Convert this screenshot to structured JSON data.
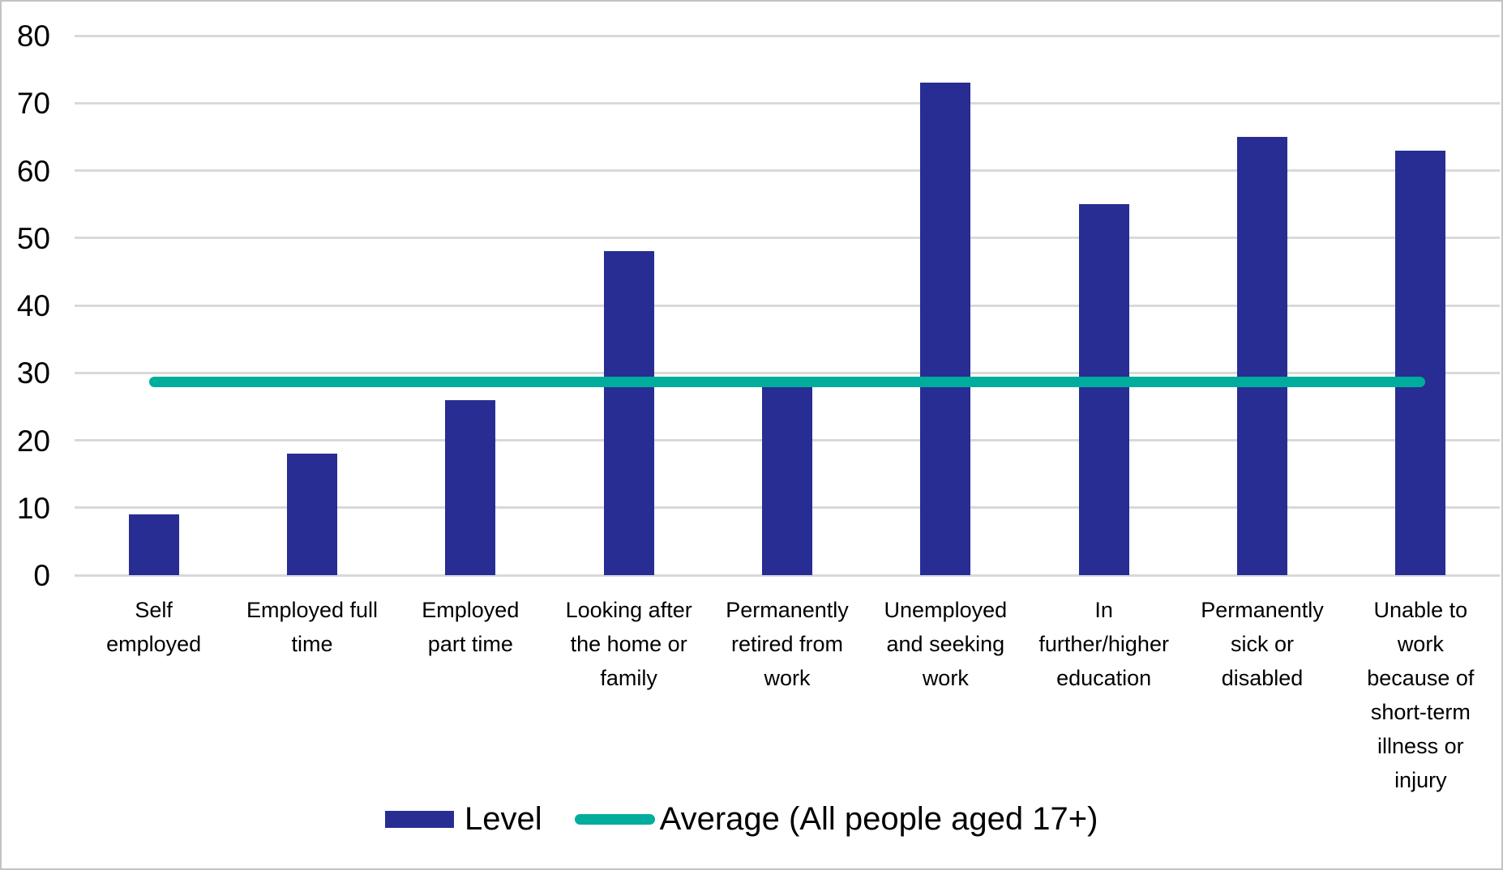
{
  "chart_data": {
    "type": "bar",
    "title": "",
    "xlabel": "",
    "ylabel": "",
    "categories": [
      "Self\nemployed",
      "Employed full\ntime",
      "Employed\npart time",
      "Looking after\nthe home or\nfamily",
      "Permanently\nretired from\nwork",
      "Unemployed\nand seeking\nwork",
      "In\nfurther/higher\neducation",
      "Permanently\nsick or\ndisabled",
      "Unable to\nwork\nbecause of\nshort-term\nillness or\ninjury"
    ],
    "series": [
      {
        "name": "Level",
        "type": "bar",
        "color": "#272d93",
        "values": [
          9,
          18,
          26,
          48,
          28,
          73,
          55,
          65,
          63
        ]
      },
      {
        "name": "Average (All people aged 17+)",
        "type": "line",
        "color": "#00ad9c",
        "value": 28.7
      }
    ],
    "ylim": [
      0,
      80
    ],
    "yticks": [
      0,
      10,
      20,
      30,
      40,
      50,
      60,
      70,
      80
    ],
    "grid": "horizontal",
    "legend_position": "bottom"
  },
  "colors": {
    "bar": "#272d93",
    "average_line": "#00ad9c",
    "gridline": "#d9d9d9",
    "border": "#c3c3c3",
    "text": "#000000",
    "background": "#ffffff"
  }
}
